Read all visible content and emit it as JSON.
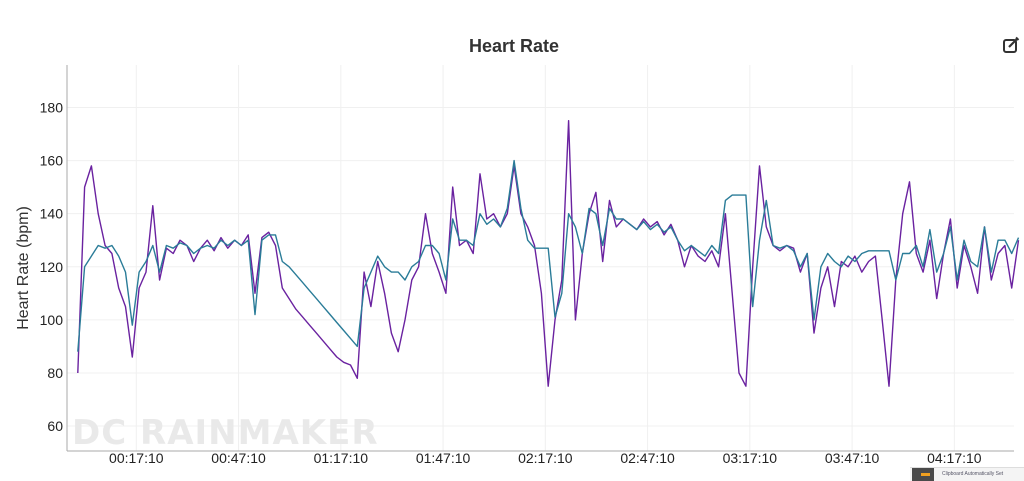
{
  "chart_data": {
    "type": "line",
    "title": "Heart Rate",
    "xlabel": "",
    "ylabel": "Heart Rate (bpm)",
    "x_unit": "elapsed time (h:mm:ss)",
    "x_start_seconds": 0,
    "x_step_seconds": 120,
    "xlim_seconds": [
      -190,
      16480
    ],
    "ylim": [
      50.6,
      196
    ],
    "grid": true,
    "legend": "none",
    "x_ticks": [
      {
        "label": "00:17:10",
        "seconds": 1030
      },
      {
        "label": "00:47:10",
        "seconds": 2830
      },
      {
        "label": "01:17:10",
        "seconds": 4630
      },
      {
        "label": "01:47:10",
        "seconds": 6430
      },
      {
        "label": "02:17:10",
        "seconds": 8230
      },
      {
        "label": "02:47:10",
        "seconds": 10030
      },
      {
        "label": "03:17:10",
        "seconds": 11830
      },
      {
        "label": "03:47:10",
        "seconds": 13630
      },
      {
        "label": "04:17:10",
        "seconds": 15430
      }
    ],
    "y_ticks": [
      60,
      80,
      100,
      120,
      140,
      160,
      180
    ],
    "series": [
      {
        "color": "#6a22a0",
        "values": [
          80,
          150,
          158,
          140,
          128,
          125,
          112,
          105,
          86,
          112,
          118,
          143,
          115,
          127,
          125,
          130,
          128,
          122,
          127,
          130,
          126,
          131,
          127,
          130,
          128,
          132,
          110,
          131,
          133,
          128,
          112,
          108,
          104,
          101,
          98,
          95,
          92,
          89,
          86,
          84,
          83,
          78,
          118,
          105,
          122,
          110,
          95,
          88,
          100,
          115,
          120,
          140,
          125,
          118,
          110,
          150,
          128,
          130,
          125,
          155,
          138,
          140,
          135,
          140,
          158,
          140,
          135,
          128,
          110,
          75,
          100,
          115,
          175,
          100,
          125,
          140,
          148,
          122,
          145,
          135,
          138,
          136,
          134,
          138,
          135,
          137,
          132,
          136,
          130,
          120,
          128,
          124,
          122,
          126,
          120,
          140,
          110,
          80,
          75,
          120,
          158,
          135,
          128,
          126,
          128,
          127,
          118,
          125,
          95,
          112,
          120,
          105,
          122,
          120,
          124,
          118,
          122,
          124,
          100,
          75,
          115,
          140,
          152,
          125,
          118,
          130,
          108,
          125,
          138,
          112,
          128,
          120,
          110,
          135,
          115,
          125,
          128,
          112,
          130
        ]
      },
      {
        "color": "#2a7c98",
        "values": [
          88,
          120,
          124,
          128,
          127,
          128,
          124,
          118,
          98,
          118,
          122,
          128,
          118,
          128,
          127,
          129,
          128,
          125,
          127,
          128,
          127,
          130,
          128,
          130,
          128,
          130,
          102,
          130,
          132,
          132,
          122,
          120,
          117,
          114,
          111,
          108,
          105,
          102,
          99,
          96,
          93,
          90,
          112,
          118,
          124,
          120,
          118,
          118,
          115,
          120,
          122,
          128,
          128,
          125,
          115,
          138,
          130,
          130,
          128,
          140,
          136,
          138,
          135,
          142,
          160,
          142,
          130,
          127,
          127,
          127,
          101,
          110,
          140,
          135,
          125,
          142,
          140,
          128,
          142,
          138,
          138,
          136,
          134,
          137,
          134,
          136,
          133,
          135,
          130,
          126,
          128,
          126,
          124,
          128,
          125,
          145,
          147,
          147,
          147,
          105,
          130,
          145,
          128,
          127,
          128,
          126,
          120,
          125,
          100,
          120,
          125,
          122,
          120,
          124,
          122,
          125,
          126,
          126,
          126,
          126,
          115,
          125,
          125,
          128,
          120,
          134,
          118,
          125,
          135,
          115,
          130,
          122,
          120,
          135,
          118,
          130,
          130,
          125,
          131
        ]
      }
    ]
  },
  "watermark": "DC RAINMAKER",
  "toolbar": {
    "edit_icon": "edit-pencil-icon"
  },
  "notification": {
    "title": "Clipboard Automatically Set",
    "icon": "clipboard-arrow-icon",
    "icon_color": "#f0a020"
  }
}
